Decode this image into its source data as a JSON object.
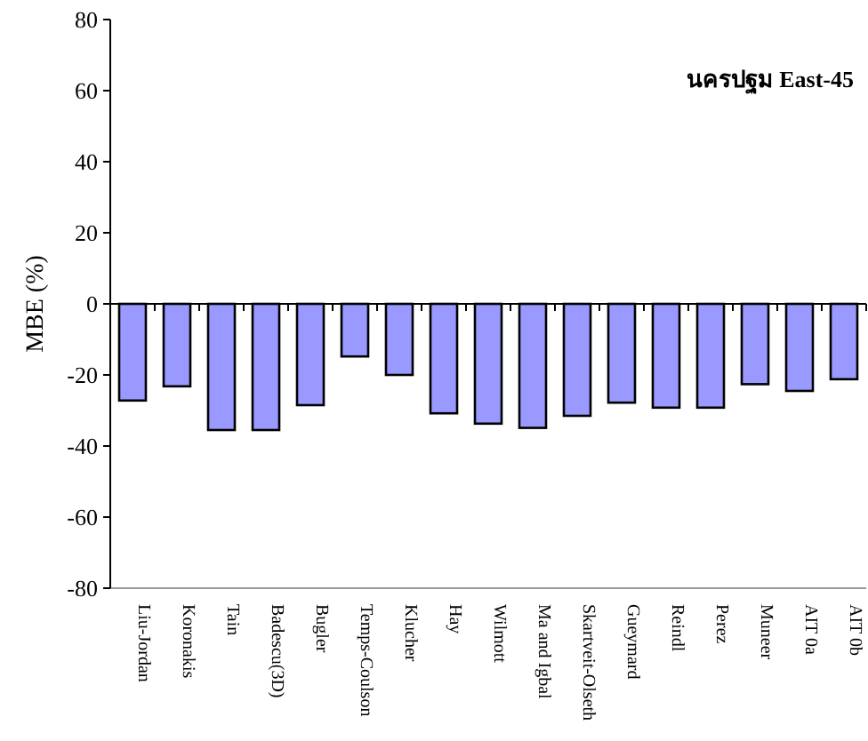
{
  "chart_data": {
    "type": "bar",
    "title": "นครปฐม East-45",
    "ylabel": "MBE (%)",
    "categories": [
      "Liu-Jordan",
      "Koronakis",
      "Tain",
      "Badescu(3D)",
      "Bugler",
      "Temps-Coulson",
      "Klucher",
      "Hay",
      "Wilmott",
      "Ma and Igbal",
      "Skartveit-Olseth",
      "Gueymard",
      "Reindl",
      "Perez",
      "Muneer",
      "AIT 0a",
      "AIT 0b"
    ],
    "values": [
      -27.2,
      -23.2,
      -35.5,
      -35.5,
      -28.5,
      -14.8,
      -20,
      -30.8,
      -33.7,
      -34.9,
      -31.5,
      -27.8,
      -29.2,
      -29.2,
      -22.6,
      -24.5,
      -21.2
    ],
    "color": "#9999ff",
    "ylim": [
      -80,
      80
    ],
    "yticks": [
      -80,
      -60,
      -40,
      -20,
      0,
      20,
      40,
      60,
      80
    ]
  }
}
